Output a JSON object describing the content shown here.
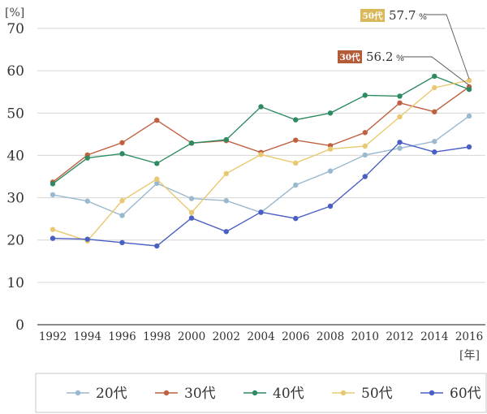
{
  "chart_data": {
    "type": "line",
    "y_unit": "[%]",
    "x_unit": "[年]",
    "ylim": [
      0,
      70
    ],
    "yticks": [
      0,
      10,
      20,
      30,
      40,
      50,
      60,
      70
    ],
    "grid": true,
    "legend_position": "bottom",
    "x": [
      "1992",
      "1994",
      "1996",
      "1998",
      "2000",
      "2002",
      "2004",
      "2006",
      "2008",
      "2010",
      "2012",
      "2014",
      "2016"
    ],
    "series": [
      {
        "name": "20代",
        "color": "#9ab9cf",
        "values": [
          30.7,
          29.2,
          25.8,
          33.4,
          29.8,
          29.3,
          26.5,
          33.0,
          36.3,
          40.1,
          41.7,
          43.3,
          49.3
        ]
      },
      {
        "name": "30代",
        "color": "#bf6040",
        "values": [
          33.7,
          40.1,
          43.0,
          48.3,
          42.9,
          43.5,
          40.7,
          43.6,
          42.3,
          45.4,
          52.4,
          50.3,
          56.2
        ]
      },
      {
        "name": "40代",
        "color": "#2e8b61",
        "values": [
          33.3,
          39.4,
          40.4,
          38.1,
          42.9,
          43.7,
          51.5,
          48.4,
          50.0,
          54.2,
          54.0,
          58.7,
          55.6
        ]
      },
      {
        "name": "50代",
        "color": "#e8c870",
        "values": [
          22.5,
          19.8,
          29.3,
          34.4,
          26.5,
          35.7,
          40.2,
          38.2,
          41.5,
          42.2,
          49.1,
          56.0,
          57.7
        ]
      },
      {
        "name": "60代",
        "color": "#4a5fc4",
        "values": [
          20.4,
          20.2,
          19.4,
          18.6,
          25.2,
          22.0,
          26.6,
          25.1,
          28.0,
          35.0,
          43.1,
          40.8,
          42.0
        ]
      }
    ],
    "callouts": [
      {
        "series": "50代",
        "label": "50代",
        "value": "57.7",
        "unit": "%",
        "color": "#d9b85a"
      },
      {
        "series": "30代",
        "label": "30代",
        "value": "56.2",
        "unit": "%",
        "color": "#b35c3a"
      }
    ]
  }
}
